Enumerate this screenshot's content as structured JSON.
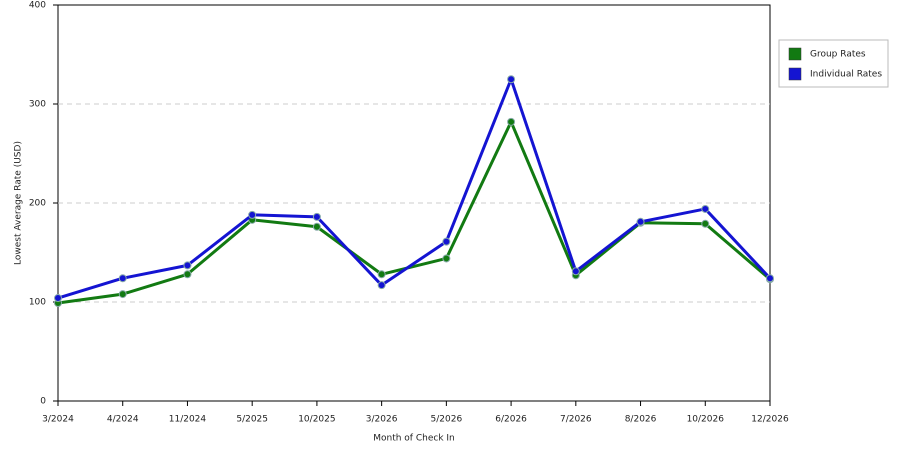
{
  "chart_data": {
    "type": "line",
    "x_label": "Month of Check In",
    "y_label": "Lowest Average Rate (USD)",
    "categories": [
      "3/2024",
      "4/2024",
      "11/2024",
      "5/2025",
      "10/2025",
      "3/2026",
      "5/2026",
      "6/2026",
      "7/2026",
      "8/2026",
      "10/2026",
      "12/2026"
    ],
    "series": [
      {
        "name": "Group Rates",
        "color": "#127a12",
        "values": [
          99,
          108,
          128,
          183,
          176,
          128,
          144,
          282,
          127,
          180,
          179,
          123
        ]
      },
      {
        "name": "Individual Rates",
        "color": "#1414d2",
        "values": [
          104,
          124,
          137,
          188,
          186,
          117,
          161,
          325,
          131,
          181,
          194,
          124
        ]
      }
    ],
    "ylim": [
      0,
      400
    ],
    "yticks": [
      0,
      100,
      200,
      300,
      400
    ],
    "grid": true,
    "legend": "right"
  }
}
